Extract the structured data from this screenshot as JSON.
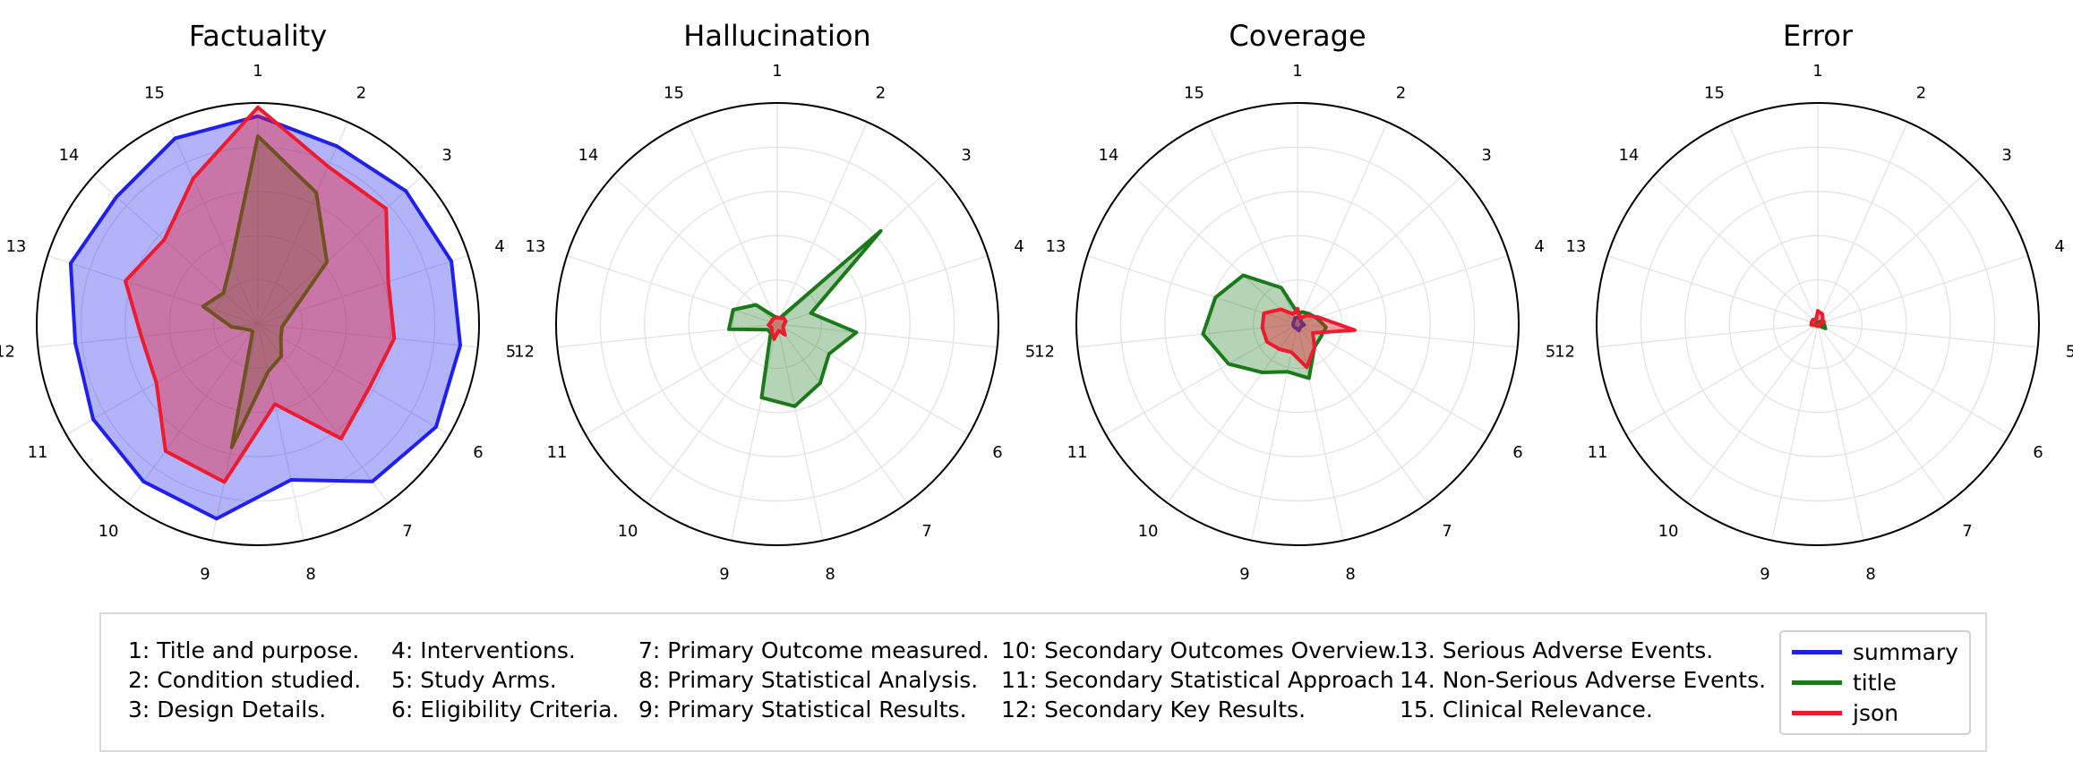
{
  "chart_data": [
    {
      "type": "radar",
      "title": "Factuality",
      "axes": [
        "1",
        "2",
        "3",
        "4",
        "5",
        "6",
        "7",
        "8",
        "9",
        "10",
        "11",
        "12",
        "13",
        "14",
        "15"
      ],
      "rmax": 10,
      "series": [
        {
          "name": "summary",
          "color": "#1f1ff0",
          "values": [
            9.4,
            8.8,
            9.0,
            9.2,
            9.2,
            9.3,
            8.8,
            7.2,
            9.0,
            8.8,
            8.6,
            8.3,
            8.9,
            8.6,
            9.2
          ]
        },
        {
          "name": "title",
          "color": "#1a7a1a",
          "values": [
            8.5,
            6.5,
            4.2,
            1.6,
            1.1,
            1.2,
            1.8,
            2.2,
            5.7,
            0.4,
            0.5,
            1.2,
            2.6,
            2.1,
            3.0
          ]
        },
        {
          "name": "json",
          "color": "#ee1a2e",
          "values": [
            9.8,
            7.8,
            7.8,
            6.2,
            6.2,
            5.8,
            6.4,
            3.7,
            7.3,
            7.1,
            5.3,
            5.3,
            6.3,
            5.7,
            7.2
          ]
        }
      ]
    },
    {
      "type": "radar",
      "title": "Hallucination",
      "axes": [
        "1",
        "2",
        "3",
        "4",
        "5",
        "6",
        "7",
        "8",
        "9",
        "10",
        "11",
        "12",
        "13",
        "14",
        "15"
      ],
      "rmax": 10,
      "series": [
        {
          "name": "summary",
          "color": "#1f1ff0",
          "values": [
            0,
            0,
            0,
            0,
            0,
            0,
            0,
            0,
            0,
            0,
            0,
            0,
            0,
            0,
            0
          ]
        },
        {
          "name": "title",
          "color": "#1a7a1a",
          "values": [
            0.3,
            0.3,
            6.3,
            1.6,
            3.6,
            2.7,
            3.3,
            3.8,
            3.4,
            0.5,
            0.5,
            2.2,
            2.1,
            1.3,
            0.4
          ]
        },
        {
          "name": "json",
          "color": "#ee1a2e",
          "values": [
            0.3,
            0.3,
            0.4,
            0.4,
            0.3,
            0.3,
            0.6,
            0.3,
            0.7,
            0.4,
            0.3,
            0.4,
            0.3,
            0.3,
            0.3
          ]
        }
      ]
    },
    {
      "type": "radar",
      "title": "Coverage",
      "axes": [
        "1",
        "2",
        "3",
        "4",
        "5",
        "6",
        "7",
        "8",
        "9",
        "10",
        "11",
        "12",
        "13",
        "14",
        "15"
      ],
      "rmax": 10,
      "series": [
        {
          "name": "summary",
          "color": "#1f1ff0",
          "values": [
            0.3,
            0.3,
            0.2,
            0.2,
            0.3,
            0.2,
            0.2,
            0.3,
            0.2,
            0.2,
            0.2,
            0.2,
            0.2,
            0.2,
            0.3
          ]
        },
        {
          "name": "title",
          "color": "#1a7a1a",
          "values": [
            0.5,
            0.6,
            0.7,
            0.9,
            1.3,
            1.2,
            1.3,
            2.5,
            2.2,
            2.7,
            3.6,
            4.3,
            3.9,
            3.3,
            1.8
          ]
        },
        {
          "name": "json",
          "color": "#ee1a2e",
          "values": [
            0.7,
            0.3,
            0.6,
            1.0,
            2.6,
            0.8,
            1.3,
            2.0,
            1.3,
            1.4,
            1.6,
            1.6,
            1.6,
            1.0,
            0.5
          ]
        }
      ]
    },
    {
      "type": "radar",
      "title": "Error",
      "axes": [
        "1",
        "2",
        "3",
        "4",
        "5",
        "6",
        "7",
        "8",
        "9",
        "10",
        "11",
        "12",
        "13",
        "14",
        "15"
      ],
      "rmax": 10,
      "series": [
        {
          "name": "summary",
          "color": "#1f1ff0",
          "values": [
            0,
            0,
            0,
            0,
            0,
            0,
            0,
            0,
            0,
            0,
            0,
            0,
            0,
            0,
            0
          ]
        },
        {
          "name": "title",
          "color": "#1a7a1a",
          "values": [
            0.1,
            0.1,
            0.2,
            0.2,
            0.3,
            0.4,
            0.1,
            0.1,
            0.1,
            0.1,
            0.1,
            0.1,
            0.1,
            0.1,
            0.1
          ]
        },
        {
          "name": "json",
          "color": "#ee1a2e",
          "values": [
            0.6,
            0.5,
            0.3,
            0.3,
            0.1,
            0.1,
            0.1,
            0.1,
            0.1,
            0.1,
            0.1,
            0.3,
            0.3,
            0.3,
            0.2
          ]
        }
      ]
    }
  ],
  "key": {
    "col1": [
      "1: Title and purpose.",
      "2: Condition studied.",
      "3: Design Details."
    ],
    "col2": [
      "4: Interventions.",
      "5: Study Arms.",
      "6: Eligibility Criteria."
    ],
    "col3": [
      "7: Primary Outcome measured.",
      "8: Primary Statistical Analysis.",
      "9: Primary Statistical Results."
    ],
    "col4": [
      "10: Secondary Outcomes Overview.",
      "11: Secondary Statistical Approach",
      "12: Secondary Key Results."
    ],
    "col5": [
      "13. Serious Adverse Events.",
      "14. Non-Serious Adverse Events.",
      "15. Clinical Relevance."
    ]
  },
  "legend": [
    {
      "label": "summary",
      "color": "#1f1ff0"
    },
    {
      "label": "title",
      "color": "#1a7a1a"
    },
    {
      "label": "json",
      "color": "#ee1a2e"
    }
  ]
}
